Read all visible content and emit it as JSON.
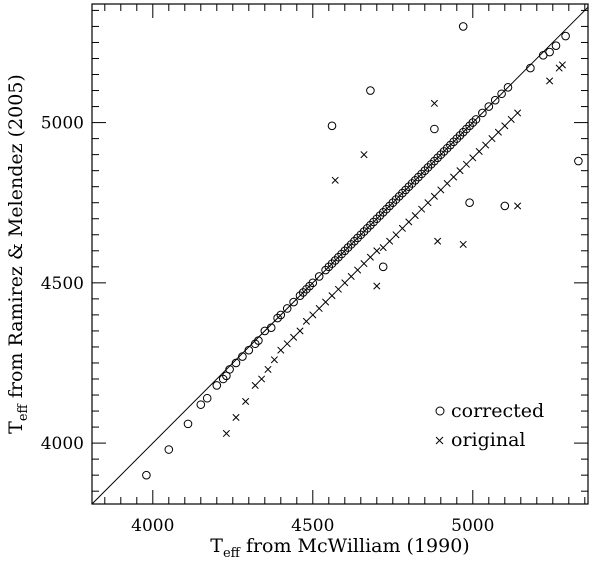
{
  "chart_data": {
    "type": "scatter",
    "xlabel": {
      "main": "T",
      "sub": "eff",
      "rest": " from McWilliam (1990)"
    },
    "ylabel": {
      "main": "T",
      "sub": "eff",
      "rest": " from Ramirez & Melendez (2005)"
    },
    "xlim": [
      3810,
      5360
    ],
    "ylim": [
      3810,
      5370
    ],
    "x_ticks": [
      4000,
      4500,
      5000
    ],
    "y_ticks": [
      4000,
      4500,
      5000
    ],
    "grid": false,
    "legend_position": "bottom-right",
    "reference_line": "y = x",
    "series": [
      {
        "name": "corrected",
        "marker": "circle",
        "points": [
          [
            3980,
            3900
          ],
          [
            4050,
            3980
          ],
          [
            4110,
            4060
          ],
          [
            4150,
            4120
          ],
          [
            4170,
            4140
          ],
          [
            4200,
            4180
          ],
          [
            4220,
            4200
          ],
          [
            4230,
            4210
          ],
          [
            4240,
            4230
          ],
          [
            4260,
            4250
          ],
          [
            4280,
            4270
          ],
          [
            4300,
            4290
          ],
          [
            4320,
            4310
          ],
          [
            4330,
            4320
          ],
          [
            4350,
            4350
          ],
          [
            4370,
            4360
          ],
          [
            4390,
            4390
          ],
          [
            4400,
            4400
          ],
          [
            4420,
            4420
          ],
          [
            4440,
            4440
          ],
          [
            4460,
            4460
          ],
          [
            4470,
            4470
          ],
          [
            4480,
            4480
          ],
          [
            4490,
            4490
          ],
          [
            4500,
            4500
          ],
          [
            4520,
            4520
          ],
          [
            4540,
            4540
          ],
          [
            4550,
            4550
          ],
          [
            4560,
            4560
          ],
          [
            4570,
            4570
          ],
          [
            4580,
            4580
          ],
          [
            4590,
            4590
          ],
          [
            4600,
            4600
          ],
          [
            4610,
            4610
          ],
          [
            4620,
            4620
          ],
          [
            4630,
            4630
          ],
          [
            4640,
            4640
          ],
          [
            4650,
            4650
          ],
          [
            4660,
            4660
          ],
          [
            4670,
            4670
          ],
          [
            4680,
            4680
          ],
          [
            4690,
            4690
          ],
          [
            4700,
            4700
          ],
          [
            4710,
            4710
          ],
          [
            4720,
            4720
          ],
          [
            4730,
            4730
          ],
          [
            4740,
            4740
          ],
          [
            4750,
            4750
          ],
          [
            4760,
            4760
          ],
          [
            4770,
            4770
          ],
          [
            4780,
            4780
          ],
          [
            4790,
            4790
          ],
          [
            4800,
            4800
          ],
          [
            4810,
            4810
          ],
          [
            4820,
            4820
          ],
          [
            4830,
            4830
          ],
          [
            4840,
            4840
          ],
          [
            4850,
            4850
          ],
          [
            4860,
            4860
          ],
          [
            4870,
            4870
          ],
          [
            4880,
            4880
          ],
          [
            4890,
            4890
          ],
          [
            4900,
            4900
          ],
          [
            4910,
            4910
          ],
          [
            4920,
            4920
          ],
          [
            4930,
            4930
          ],
          [
            4940,
            4940
          ],
          [
            4950,
            4950
          ],
          [
            4960,
            4960
          ],
          [
            4970,
            4970
          ],
          [
            4980,
            4980
          ],
          [
            4990,
            4990
          ],
          [
            5000,
            5000
          ],
          [
            5010,
            5010
          ],
          [
            5030,
            5030
          ],
          [
            5050,
            5050
          ],
          [
            5070,
            5070
          ],
          [
            5090,
            5090
          ],
          [
            5110,
            5110
          ],
          [
            5180,
            5170
          ],
          [
            5220,
            5210
          ],
          [
            5240,
            5220
          ],
          [
            5260,
            5240
          ],
          [
            5290,
            5270
          ],
          [
            4560,
            4990
          ],
          [
            4680,
            5100
          ],
          [
            4970,
            5300
          ],
          [
            4880,
            4980
          ],
          [
            4990,
            4750
          ],
          [
            4720,
            4550
          ],
          [
            5100,
            4740
          ],
          [
            5330,
            4880
          ]
        ]
      },
      {
        "name": "original",
        "marker": "cross",
        "points": [
          [
            4230,
            4030
          ],
          [
            4260,
            4080
          ],
          [
            4290,
            4130
          ],
          [
            4320,
            4180
          ],
          [
            4340,
            4200
          ],
          [
            4360,
            4230
          ],
          [
            4380,
            4260
          ],
          [
            4400,
            4290
          ],
          [
            4420,
            4310
          ],
          [
            4440,
            4330
          ],
          [
            4460,
            4350
          ],
          [
            4480,
            4380
          ],
          [
            4500,
            4400
          ],
          [
            4520,
            4420
          ],
          [
            4540,
            4440
          ],
          [
            4560,
            4460
          ],
          [
            4580,
            4480
          ],
          [
            4600,
            4500
          ],
          [
            4620,
            4520
          ],
          [
            4640,
            4540
          ],
          [
            4660,
            4560
          ],
          [
            4680,
            4580
          ],
          [
            4700,
            4600
          ],
          [
            4720,
            4610
          ],
          [
            4740,
            4630
          ],
          [
            4760,
            4650
          ],
          [
            4780,
            4670
          ],
          [
            4800,
            4690
          ],
          [
            4820,
            4710
          ],
          [
            4840,
            4730
          ],
          [
            4860,
            4750
          ],
          [
            4880,
            4770
          ],
          [
            4900,
            4790
          ],
          [
            4920,
            4810
          ],
          [
            4940,
            4830
          ],
          [
            4960,
            4850
          ],
          [
            4980,
            4870
          ],
          [
            5000,
            4890
          ],
          [
            5020,
            4910
          ],
          [
            5040,
            4930
          ],
          [
            5060,
            4950
          ],
          [
            5080,
            4970
          ],
          [
            5100,
            4990
          ],
          [
            5120,
            5010
          ],
          [
            5140,
            5030
          ],
          [
            5240,
            5130
          ],
          [
            5270,
            5170
          ],
          [
            5280,
            5180
          ],
          [
            4570,
            4820
          ],
          [
            4660,
            4900
          ],
          [
            4880,
            5060
          ],
          [
            4890,
            4630
          ],
          [
            4970,
            4620
          ],
          [
            4700,
            4490
          ],
          [
            5140,
            4740
          ]
        ]
      }
    ],
    "legend": [
      {
        "marker": "circle",
        "label": "corrected"
      },
      {
        "marker": "cross",
        "label": "original"
      }
    ]
  }
}
